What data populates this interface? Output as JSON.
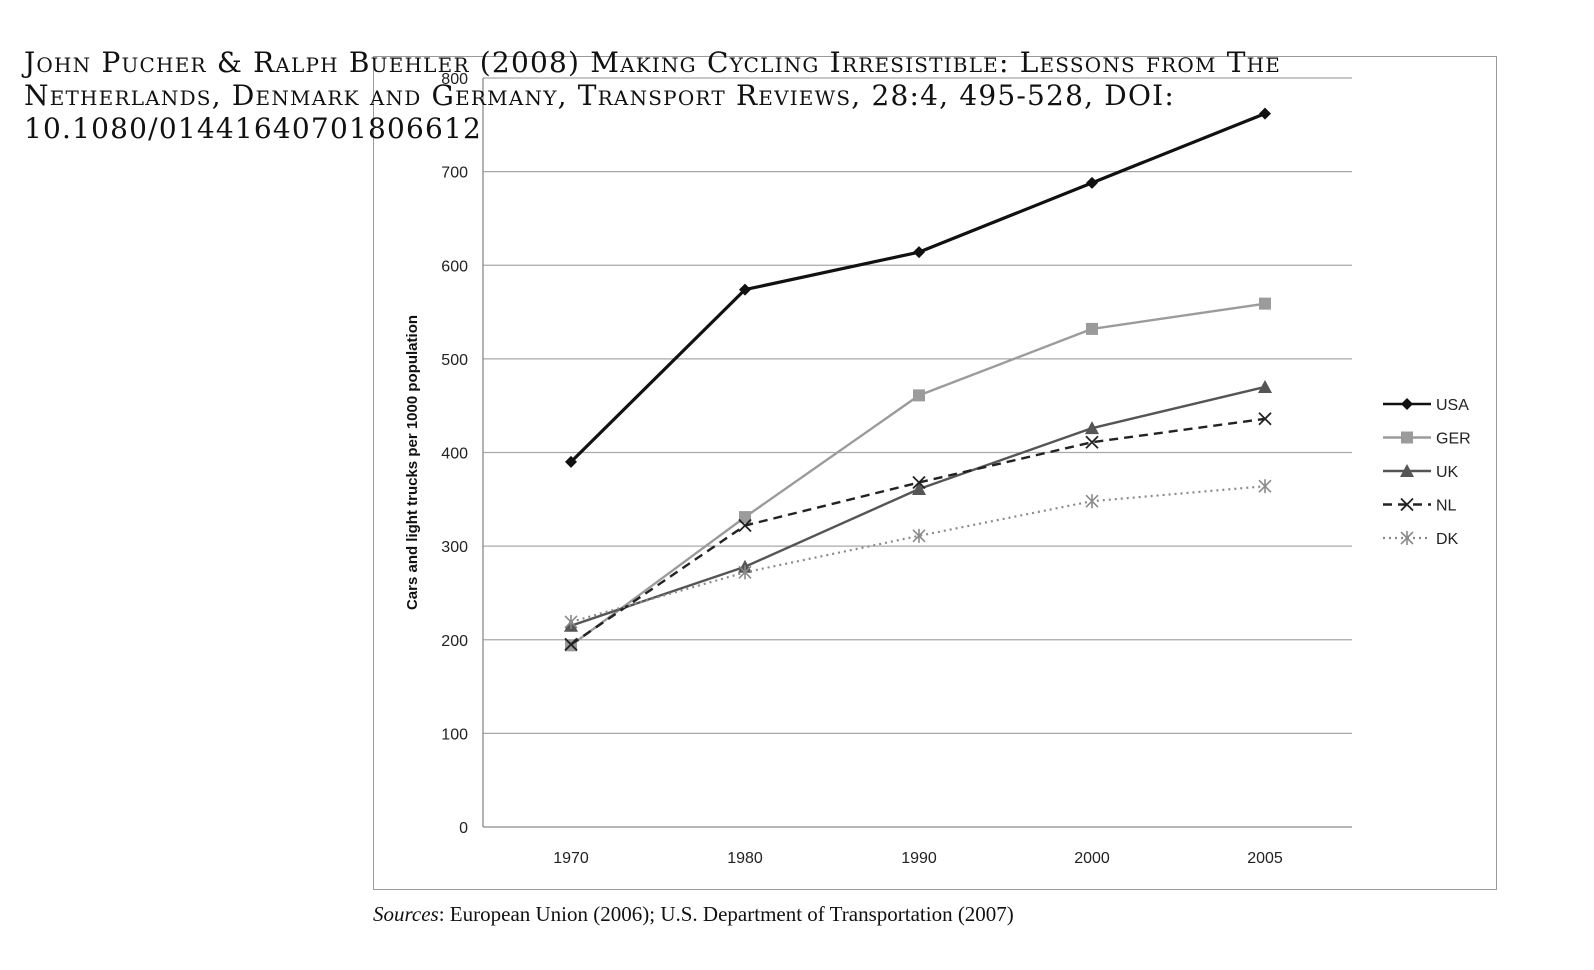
{
  "citation": {
    "line1": "John Pucher & Ralph Buehler (2008) Making Cycling Irresistible: Lessons from The",
    "line2": "Netherlands, Denmark and Germany, Transport Reviews, 28:4, 495-528, DOI:",
    "line3": "10.1080/01441640701806612"
  },
  "source": {
    "label": "Sources",
    "text": ": European Union (2006); U.S. Department of Transportation (2007)"
  },
  "chart_data": {
    "type": "line",
    "title": "",
    "xlabel": "",
    "ylabel": "Cars and light trucks per 1000 population",
    "categories": [
      "1970",
      "1980",
      "1990",
      "2000",
      "2005"
    ],
    "ylim": [
      0,
      800
    ],
    "yticks": [
      0,
      100,
      200,
      300,
      400,
      500,
      600,
      700,
      800
    ],
    "grid": true,
    "legend_position": "right",
    "series": [
      {
        "name": "USA",
        "values": [
          390,
          574,
          614,
          688,
          762
        ],
        "color": "#111111",
        "dash": "",
        "marker": "diamond",
        "width": 3.2
      },
      {
        "name": "GER",
        "values": [
          194,
          331,
          461,
          532,
          559
        ],
        "color": "#9b9b9b",
        "dash": "",
        "marker": "square",
        "width": 2.4
      },
      {
        "name": "UK",
        "values": [
          215,
          278,
          361,
          426,
          470
        ],
        "color": "#555555",
        "dash": "",
        "marker": "triangle",
        "width": 2.4
      },
      {
        "name": "NL",
        "values": [
          195,
          322,
          368,
          411,
          436
        ],
        "color": "#222222",
        "dash": "9,6",
        "marker": "x",
        "width": 2.4
      },
      {
        "name": "DK",
        "values": [
          219,
          272,
          311,
          348,
          364
        ],
        "color": "#8a8a8a",
        "dash": "2,4",
        "marker": "star",
        "width": 2.2
      }
    ]
  }
}
